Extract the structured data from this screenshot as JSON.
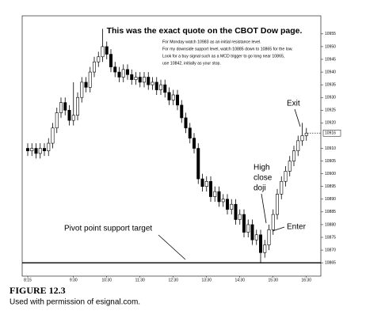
{
  "chart_data": {
    "type": "candlestick",
    "title": "This was the exact quote on the CBOT Dow page.",
    "notes": [
      "For Monday watch 10983 as an initial resistance level.",
      "For my downside support level, watch  10885 down to 10865 for the low.",
      "Look for a buy signal such as a MCD trigger to go long near 10865,",
      "use 10842, initially as your stop."
    ],
    "annotations": {
      "exit": "Exit",
      "doji": [
        "High",
        "close",
        "doji"
      ],
      "enter": "Enter",
      "support": "Pivot point support target"
    },
    "categories": [
      "8:15",
      null,
      null,
      null,
      null,
      null,
      null,
      null,
      null,
      null,
      null,
      "9:30",
      null,
      null,
      null,
      null,
      null,
      null,
      null,
      "10:30",
      null,
      null,
      null,
      null,
      null,
      null,
      null,
      "11:30",
      null,
      null,
      null,
      null,
      null,
      null,
      null,
      "12:30",
      null,
      null,
      null,
      null,
      null,
      null,
      null,
      "13:30",
      null,
      null,
      null,
      null,
      null,
      null,
      null,
      "14:30",
      null,
      null,
      null,
      null,
      null,
      null,
      null,
      "15:30",
      null,
      null,
      null,
      null,
      null,
      null,
      null,
      "16:30"
    ],
    "open": [
      10910,
      10909,
      10910,
      10908,
      10910,
      10909,
      10912,
      10918,
      10924,
      10928,
      10925,
      10921,
      10923,
      10930,
      10936,
      10934,
      10940,
      10944,
      10946,
      10950,
      10947,
      10942,
      10940,
      10938,
      10941,
      10939,
      10937,
      10938,
      10936,
      10938,
      10935,
      10936,
      10933,
      10935,
      10932,
      10929,
      10931,
      10927,
      10922,
      10918,
      10914,
      10910,
      10898,
      10895,
      10897,
      10891,
      10893,
      10889,
      10890,
      10886,
      10888,
      10882,
      10884,
      10877,
      10880,
      10874,
      10876,
      10869,
      10872,
      10878,
      10884,
      10892,
      10897,
      10901,
      10905,
      10909,
      10913,
      10915
    ],
    "high": [
      10912,
      10912,
      10912,
      10912,
      10912,
      10914,
      10920,
      10926,
      10930,
      10930,
      10927,
      10936,
      10932,
      10938,
      10938,
      10942,
      10946,
      10948,
      10957,
      10952,
      10949,
      10944,
      10942,
      10943,
      10943,
      10941,
      10940,
      10940,
      10940,
      10940,
      10938,
      10938,
      10937,
      10937,
      10934,
      10933,
      10933,
      10929,
      10924,
      10920,
      10916,
      10912,
      10900,
      10899,
      10899,
      10895,
      10895,
      10892,
      10892,
      10890,
      10890,
      10886,
      10886,
      10882,
      10882,
      10878,
      10878,
      10874,
      10880,
      10886,
      10894,
      10899,
      10903,
      10907,
      10911,
      10915,
      10920,
      10918
    ],
    "low": [
      10907,
      10907,
      10906,
      10906,
      10907,
      10907,
      10910,
      10916,
      10922,
      10923,
      10919,
      10919,
      10921,
      10928,
      10932,
      10932,
      10938,
      10942,
      10944,
      10945,
      10940,
      10938,
      10936,
      10936,
      10937,
      10935,
      10935,
      10934,
      10934,
      10933,
      10933,
      10931,
      10931,
      10930,
      10927,
      10927,
      10925,
      10920,
      10916,
      10912,
      10908,
      10896,
      10893,
      10893,
      10889,
      10889,
      10887,
      10887,
      10884,
      10884,
      10880,
      10880,
      10875,
      10875,
      10872,
      10872,
      10865,
      10867,
      10870,
      10876,
      10882,
      10890,
      10895,
      10899,
      10903,
      10907,
      10911,
      10913
    ],
    "close": [
      10909,
      10910,
      10908,
      10910,
      10909,
      10912,
      10918,
      10924,
      10928,
      10925,
      10921,
      10923,
      10930,
      10936,
      10934,
      10940,
      10944,
      10946,
      10950,
      10947,
      10942,
      10940,
      10938,
      10941,
      10939,
      10937,
      10938,
      10936,
      10938,
      10935,
      10936,
      10933,
      10935,
      10932,
      10929,
      10931,
      10927,
      10922,
      10918,
      10914,
      10910,
      10898,
      10895,
      10897,
      10891,
      10893,
      10889,
      10890,
      10886,
      10888,
      10882,
      10884,
      10877,
      10880,
      10874,
      10876,
      10869,
      10872,
      10878,
      10884,
      10892,
      10897,
      10901,
      10905,
      10909,
      10913,
      10915,
      10916
    ],
    "ylim": [
      10861,
      10959
    ],
    "yticks": [
      10955,
      10950,
      10945,
      10940,
      10935,
      10930,
      10925,
      10920,
      10910,
      10905,
      10900,
      10895,
      10890,
      10885,
      10880,
      10875,
      10870,
      10865
    ],
    "last_price": 10916,
    "support_line": 10865,
    "figure_label": "FIGURE 12.3",
    "caption": "Used with permission of esignal.com."
  }
}
